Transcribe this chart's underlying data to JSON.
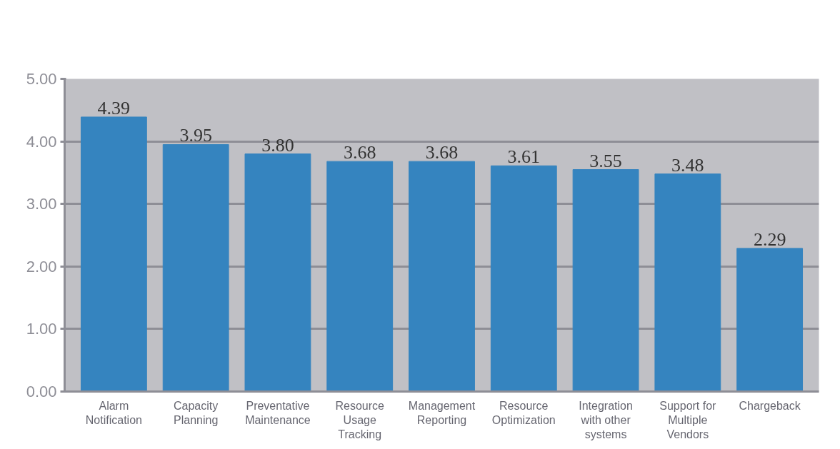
{
  "chart_data": {
    "type": "bar",
    "categories": [
      "Alarm\nNotification",
      "Capacity\nPlanning",
      "Preventative\nMaintenance",
      "Resource\nUsage\nTracking",
      "Management\nReporting",
      "Resource\nOptimization",
      "Integration\nwith other\nsystems",
      "Support for\nMultiple\nVendors",
      "Chargeback"
    ],
    "values": [
      4.39,
      3.95,
      3.8,
      3.68,
      3.68,
      3.61,
      3.55,
      3.48,
      2.29
    ],
    "color": "#3584bf",
    "ylim": [
      0,
      5
    ],
    "yticks": [
      {
        "value": 0,
        "label": "0.00"
      },
      {
        "value": 1,
        "label": "1.00"
      },
      {
        "value": 2,
        "label": "2.00"
      },
      {
        "value": 3,
        "label": "3.00"
      },
      {
        "value": 4,
        "label": "4.00"
      },
      {
        "value": 5,
        "label": "5.00"
      }
    ],
    "value_labels": [
      "4.39",
      "3.95",
      "3.80",
      "3.68",
      "3.68",
      "3.61",
      "3.55",
      "3.48",
      "2.29"
    ],
    "grid": "y"
  }
}
